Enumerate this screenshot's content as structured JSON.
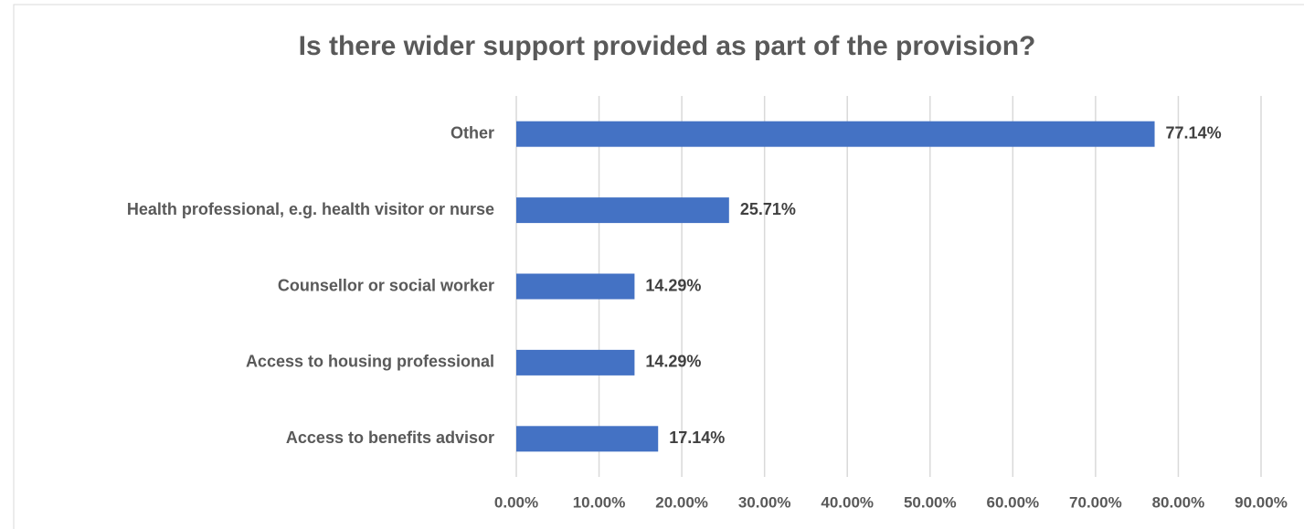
{
  "chart_data": {
    "type": "bar",
    "orientation": "horizontal",
    "title": "Is there wider support provided as part of the provision?",
    "categories": [
      "Other",
      "Health professional, e.g. health visitor or nurse",
      "Counsellor or social worker",
      "Access to housing professional",
      "Access to benefits advisor"
    ],
    "values": [
      77.14,
      25.71,
      14.29,
      14.29,
      17.14
    ],
    "value_labels": [
      "77.14%",
      "25.71%",
      "14.29%",
      "14.29%",
      "17.14%"
    ],
    "color": "#4472c4",
    "xlim": [
      0,
      90
    ],
    "xticks": [
      {
        "value": 0,
        "label": "0.00%"
      },
      {
        "value": 10,
        "label": "10.00%"
      },
      {
        "value": 20,
        "label": "20.00%"
      },
      {
        "value": 30,
        "label": "30.00%"
      },
      {
        "value": 40,
        "label": "40.00%"
      },
      {
        "value": 50,
        "label": "50.00%"
      },
      {
        "value": 60,
        "label": "60.00%"
      },
      {
        "value": 70,
        "label": "70.00%"
      },
      {
        "value": 80,
        "label": "80.00%"
      },
      {
        "value": 90,
        "label": "90.00%"
      }
    ],
    "grid": true
  }
}
